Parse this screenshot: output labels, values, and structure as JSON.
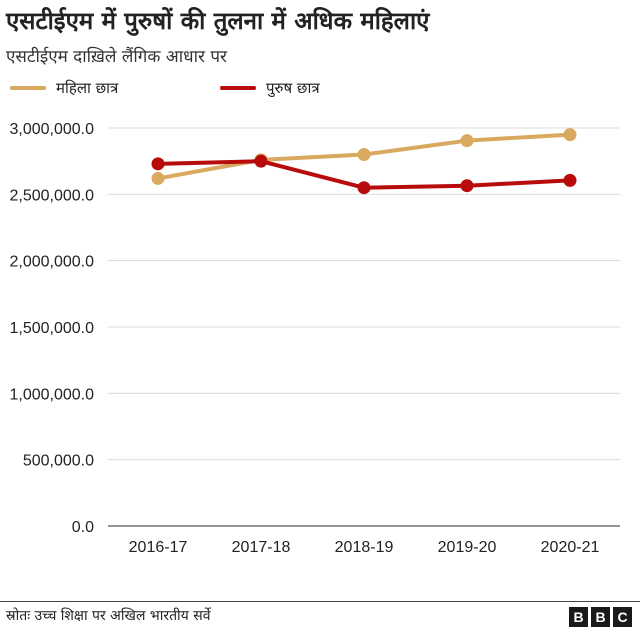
{
  "title": "एसटीईएम में पुरुषों की तुलना में अधिक महिलाएं",
  "subtitle": "एसटीईएम दाख़िले लैंगिक आधार पर",
  "source": "स्रोतः उच्च शिक्षा पर अखिल भारतीय सर्वे",
  "logo": [
    "B",
    "B",
    "C"
  ],
  "chart_data": {
    "type": "line",
    "x": [
      "2016-17",
      "2017-18",
      "2018-19",
      "2019-20",
      "2020-21"
    ],
    "series": [
      {
        "name": "महिला छात्र",
        "color": "#d8a95e",
        "values": [
          2620000,
          2760000,
          2800000,
          2905000,
          2950000
        ]
      },
      {
        "name": "पुरुष छात्र",
        "color": "#b80c0c",
        "values": [
          2730000,
          2750000,
          2550000,
          2565000,
          2605000
        ]
      }
    ],
    "ylim": [
      0,
      3000000
    ],
    "yticks": [
      "0.0",
      "500,000.0",
      "1,000,000.0",
      "1,500,000.0",
      "2,000,000.0",
      "2,500,000.0",
      "3,000,000.0"
    ],
    "ytick_values": [
      0,
      500000,
      1000000,
      1500000,
      2000000,
      2500000,
      3000000
    ],
    "grid": true,
    "legend_position": "top-left"
  }
}
